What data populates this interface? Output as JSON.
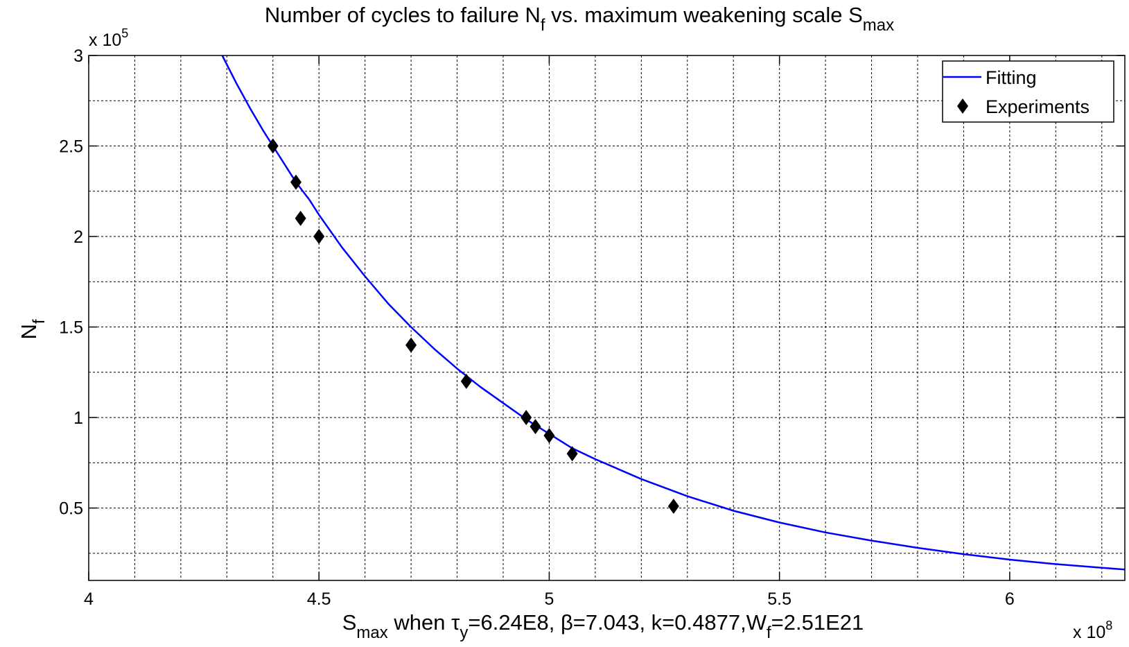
{
  "chart_data": {
    "type": "scatter",
    "title": {
      "pre": "Number of cycles to failure N",
      "sub1": "f",
      "mid": " vs. maximum weakening  scale S",
      "sub2": "max"
    },
    "xlabel": {
      "p1": "S",
      "s1": "max",
      "p2": " when  ",
      "tau": "τ",
      "s2": "y",
      "p3": "=6.24E8, β=7.043, k=0.4877,W",
      "s3": "f",
      "p4": "=2.51E21"
    },
    "ylabel": {
      "main": "N",
      "sub": "f"
    },
    "x_exponent": {
      "prefix": "x 10",
      "power": "8"
    },
    "y_exponent": {
      "prefix": "x 10",
      "power": "5"
    },
    "xlim": [
      4.0,
      6.25
    ],
    "ylim": [
      0.1,
      3.0
    ],
    "x_unit_scale": 100000000,
    "y_unit_scale": 100000,
    "x_ticks": [
      4,
      4.5,
      5,
      5.5,
      6
    ],
    "x_tick_labels": [
      "4",
      "4.5",
      "5",
      "5.5",
      "6"
    ],
    "y_ticks": [
      0.5,
      1,
      1.5,
      2,
      2.5,
      3
    ],
    "y_tick_labels": [
      "0.5",
      "1",
      "1.5",
      "2",
      "2.5",
      "3"
    ],
    "x_minor_step": 0.1,
    "y_minor_step": 0.25,
    "grid": true,
    "legend_position": "top-right",
    "series": [
      {
        "name": "Fitting",
        "kind": "line",
        "color": "#0000ff",
        "x": [
          4.29,
          4.32,
          4.35,
          4.38,
          4.4,
          4.43,
          4.45,
          4.48,
          4.5,
          4.55,
          4.6,
          4.65,
          4.7,
          4.75,
          4.8,
          4.85,
          4.9,
          4.95,
          5.0,
          5.05,
          5.1,
          5.2,
          5.3,
          5.4,
          5.5,
          5.6,
          5.7,
          5.8,
          5.9,
          6.0,
          6.1,
          6.2,
          6.25
        ],
        "y": [
          3.0,
          2.85,
          2.71,
          2.58,
          2.5,
          2.38,
          2.3,
          2.2,
          2.12,
          1.94,
          1.78,
          1.63,
          1.5,
          1.38,
          1.27,
          1.17,
          1.08,
          0.99,
          0.91,
          0.83,
          0.77,
          0.66,
          0.565,
          0.485,
          0.42,
          0.365,
          0.32,
          0.28,
          0.245,
          0.215,
          0.19,
          0.17,
          0.16
        ]
      },
      {
        "name": "Experiments",
        "kind": "scatter",
        "marker": "diamond",
        "color": "#000000",
        "x": [
          4.4,
          4.45,
          4.46,
          4.5,
          4.7,
          4.82,
          4.95,
          4.97,
          5.0,
          5.05,
          5.27
        ],
        "y": [
          2.5,
          2.3,
          2.1,
          2.0,
          1.4,
          1.2,
          1.0,
          0.95,
          0.9,
          0.8,
          0.51
        ]
      }
    ]
  }
}
